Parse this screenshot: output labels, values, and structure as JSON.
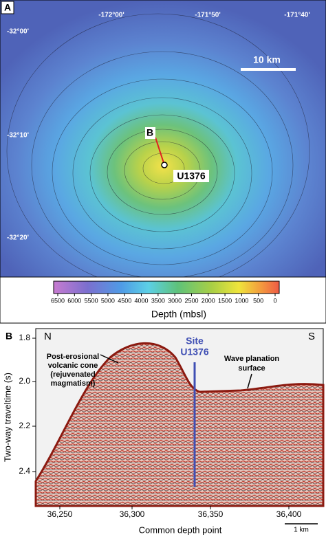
{
  "panel_a": {
    "label": "A",
    "longitudes": [
      "-172°00'",
      "-171°50'",
      "-171°40'"
    ],
    "latitudes": [
      "-32°00'",
      "-32°10'",
      "-32°20'"
    ],
    "scale_bar": "10 km",
    "profile_label": "B",
    "site": "U1376",
    "colorbar": {
      "ticks": [
        "6500",
        "6000",
        "5500",
        "5000",
        "4500",
        "4000",
        "3500",
        "3000",
        "2500",
        "2000",
        "1500",
        "1000",
        "500",
        "0"
      ],
      "label": "Depth (mbsl)"
    }
  },
  "panel_b": {
    "label": "B",
    "north": "N",
    "south": "S",
    "y_label": "Two-way traveltime (s)",
    "yticks": [
      "1.8",
      "2.0",
      "2.2",
      "2.4"
    ],
    "x_label": "Common depth point",
    "xticks": [
      "36,250",
      "36,300",
      "36,350",
      "36,400"
    ],
    "annotations": [
      "Post-erosional",
      "volcanic cone",
      "(rejuvenated",
      "magmatism)",
      "Wave planation",
      "surface"
    ],
    "site": [
      "Site",
      "U1376"
    ],
    "scale_bar": "1 km"
  }
}
